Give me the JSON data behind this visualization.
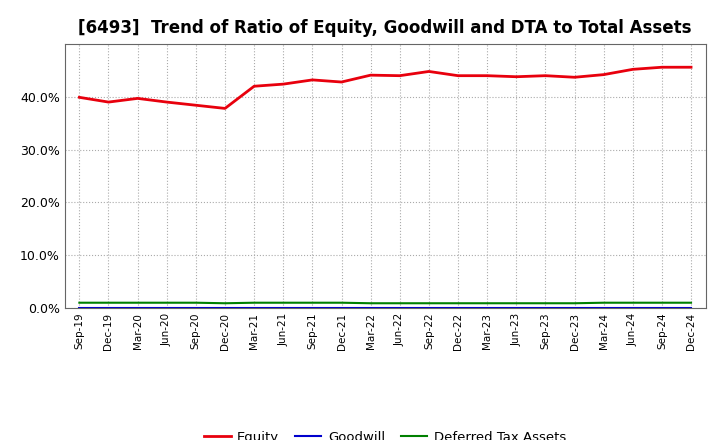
{
  "title": "[6493]  Trend of Ratio of Equity, Goodwill and DTA to Total Assets",
  "x_labels": [
    "Sep-19",
    "Dec-19",
    "Mar-20",
    "Jun-20",
    "Sep-20",
    "Dec-20",
    "Mar-21",
    "Jun-21",
    "Sep-21",
    "Dec-21",
    "Mar-22",
    "Jun-22",
    "Sep-22",
    "Dec-22",
    "Mar-23",
    "Jun-23",
    "Sep-23",
    "Dec-23",
    "Mar-24",
    "Jun-24",
    "Sep-24",
    "Dec-24"
  ],
  "equity": [
    0.399,
    0.39,
    0.397,
    0.39,
    0.384,
    0.378,
    0.42,
    0.424,
    0.432,
    0.428,
    0.441,
    0.44,
    0.448,
    0.44,
    0.44,
    0.438,
    0.44,
    0.437,
    0.442,
    0.452,
    0.456,
    0.456
  ],
  "goodwill": [
    0.0,
    0.0,
    0.0,
    0.0,
    0.0,
    0.0,
    0.0,
    0.0,
    0.0,
    0.0,
    0.0,
    0.0,
    0.0,
    0.0,
    0.0,
    0.0,
    0.0,
    0.0,
    0.0,
    0.0,
    0.0,
    0.0
  ],
  "dta": [
    0.01,
    0.01,
    0.01,
    0.01,
    0.01,
    0.009,
    0.01,
    0.01,
    0.01,
    0.01,
    0.009,
    0.009,
    0.009,
    0.009,
    0.009,
    0.009,
    0.009,
    0.009,
    0.01,
    0.01,
    0.01,
    0.01
  ],
  "equity_color": "#e8000d",
  "goodwill_color": "#0000cd",
  "dta_color": "#008000",
  "background_color": "#ffffff",
  "plot_bg_color": "#ffffff",
  "grid_color": "#aaaaaa",
  "ylim": [
    0.0,
    0.5
  ],
  "yticks": [
    0.0,
    0.1,
    0.2,
    0.3,
    0.4
  ],
  "title_fontsize": 12,
  "legend_labels": [
    "Equity",
    "Goodwill",
    "Deferred Tax Assets"
  ]
}
